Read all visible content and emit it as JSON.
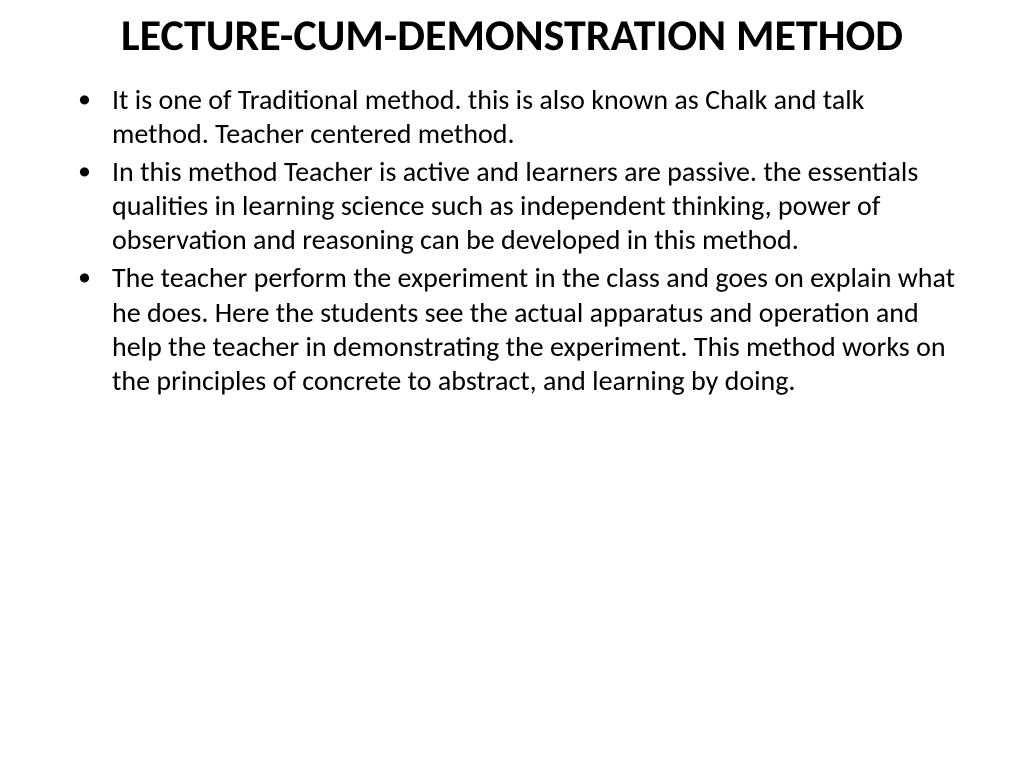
{
  "slide": {
    "title": "LECTURE-CUM-DEMONSTRATION METHOD",
    "bullets": [
      "It is one of Traditional method. this is also known as Chalk and talk method. Teacher centered method.",
      " In this method Teacher is active and learners are passive. the essentials qualities in learning science such as independent thinking, power of observation and reasoning can be developed in this method.",
      "The teacher perform the experiment in the class and goes on explain what he does. Here the students see the actual apparatus and operation and help the teacher in demonstrating the experiment. This method works on the principles of concrete to abstract, and learning by doing."
    ],
    "styling": {
      "background_color": "#ffffff",
      "text_color": "#000000",
      "title_fontsize": 44,
      "title_fontweight": "bold",
      "body_fontsize": 28,
      "font_family": "Calibri"
    }
  }
}
